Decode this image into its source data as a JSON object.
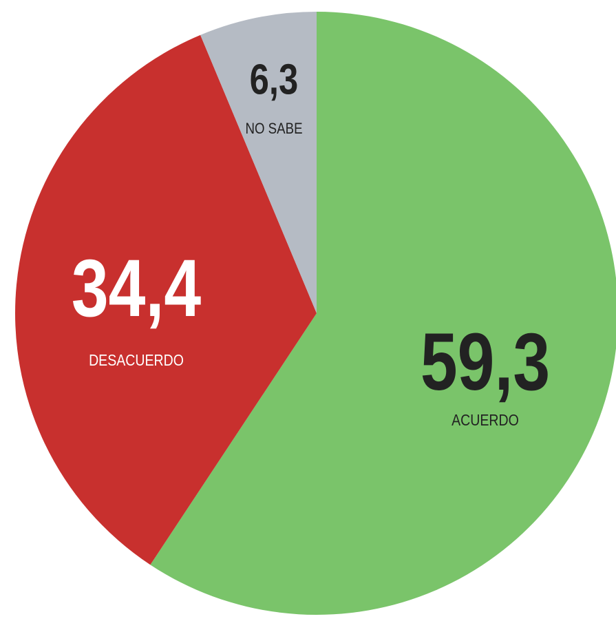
{
  "chart_data": {
    "type": "pie",
    "categories": [
      "ACUERDO",
      "DESACUERDO",
      "NO SABE"
    ],
    "values": [
      59.3,
      34.4,
      6.3
    ],
    "value_labels": [
      "59,3",
      "34,4",
      "6,3"
    ],
    "colors": [
      "#7ac46a",
      "#c8302e",
      "#b5bbc4"
    ],
    "label_colors": [
      "#222222",
      "#ffffff",
      "#222222"
    ]
  }
}
